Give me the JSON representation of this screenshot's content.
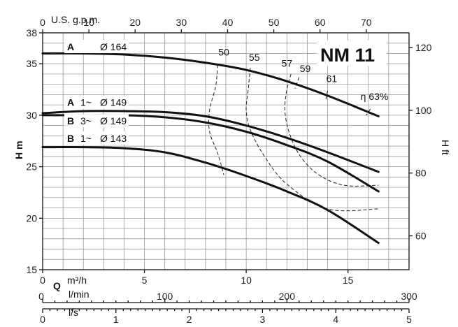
{
  "chart_data": {
    "type": "line",
    "title": "NM 11",
    "xlabel": "Q m³/h",
    "ylabel": "H m",
    "y2label": "H ft",
    "xlim": [
      0,
      18
    ],
    "ylim": [
      15,
      38
    ],
    "x_ticks": [
      0,
      5,
      10,
      15
    ],
    "y_ticks": [
      15,
      20,
      25,
      30,
      35,
      38
    ],
    "top_axis": {
      "label": "U.S. g.p.m.",
      "ticks": [
        0,
        10,
        20,
        30,
        40,
        50,
        60,
        70
      ]
    },
    "right_axis": {
      "label": "H ft",
      "ticks": [
        60,
        80,
        100,
        120
      ]
    },
    "lmin_axis": {
      "label": "l/min",
      "ticks": [
        0,
        100,
        200,
        300
      ]
    },
    "ls_axis": {
      "label": "l/s",
      "ticks": [
        0,
        1,
        2,
        3,
        4,
        5
      ]
    },
    "series": [
      {
        "name": "A  Ø 164",
        "prefix": "A",
        "phase": "",
        "diameter": "Ø 164",
        "x": [
          0,
          2,
          4,
          6,
          8,
          10,
          12,
          14,
          16.5
        ],
        "y": [
          36.0,
          36.0,
          35.9,
          35.6,
          35.1,
          34.4,
          33.3,
          31.9,
          29.9
        ]
      },
      {
        "name": "A 1~ Ø 149",
        "prefix": "A",
        "phase": "1~",
        "diameter": "Ø 149",
        "x": [
          0,
          2,
          4,
          6,
          8,
          10,
          12,
          14,
          16.5
        ],
        "y": [
          30.2,
          30.4,
          30.4,
          30.3,
          29.9,
          29.0,
          27.8,
          26.4,
          24.5
        ]
      },
      {
        "name": "B 3~ Ø 149",
        "prefix": "B",
        "phase": "3~",
        "diameter": "Ø 149",
        "x": [
          0,
          2,
          4,
          6,
          8,
          10,
          12,
          14,
          16.5
        ],
        "y": [
          30.0,
          30.0,
          30.0,
          29.8,
          29.3,
          28.4,
          27.1,
          25.5,
          22.6
        ]
      },
      {
        "name": "B 1~ Ø 143",
        "prefix": "B",
        "phase": "1~",
        "diameter": "Ø 143",
        "x": [
          0,
          2,
          4,
          6,
          8,
          10,
          12,
          14,
          16.5
        ],
        "y": [
          26.9,
          26.9,
          26.8,
          26.4,
          25.4,
          24.1,
          22.6,
          20.8,
          17.6
        ]
      }
    ],
    "efficiency_lines": [
      {
        "label": "50",
        "x": [
          8.6,
          8.5,
          8.2,
          8.2,
          8.6,
          8.9
        ],
        "y": [
          34.9,
          32.8,
          30.5,
          28.4,
          26.3,
          24.2
        ]
      },
      {
        "label": "55",
        "x": [
          10.2,
          10.1,
          10.0,
          10.2,
          10.9,
          12.0,
          14.0,
          16.5
        ],
        "y": [
          34.6,
          32.5,
          30.5,
          28.6,
          26.0,
          23.3,
          20.9,
          20.9
        ]
      },
      {
        "label": "57",
        "x": [
          12.2,
          12.0,
          11.9,
          12.1,
          12.6,
          13.5,
          14.8,
          16.5
        ],
        "y": [
          34.0,
          32.5,
          30.5,
          28.4,
          26.2,
          24.3,
          23.2,
          23.2
        ]
      },
      {
        "label": "59",
        "x": [
          12.6,
          12.4
        ],
        "y": [
          33.7,
          32.6
        ]
      },
      {
        "label": "61",
        "x": [
          14.0,
          13.9
        ],
        "y": [
          32.4,
          31.4
        ]
      },
      {
        "label": "η 63%",
        "x": [
          16.1,
          15.9
        ],
        "y": [
          30.6,
          30.0
        ]
      }
    ],
    "eff_label_pos": [
      {
        "label": "50",
        "x": 8.9,
        "y": 35.8
      },
      {
        "label": "55",
        "x": 10.4,
        "y": 35.3
      },
      {
        "label": "57",
        "x": 12.0,
        "y": 34.7
      },
      {
        "label": "59",
        "x": 12.9,
        "y": 34.2
      },
      {
        "label": "61",
        "x": 14.2,
        "y": 33.2
      },
      {
        "label": "η 63%",
        "x": 16.3,
        "y": 31.5
      }
    ],
    "curve_labels": [
      {
        "prefix": "A",
        "phase": "",
        "diameter": "Ø 164",
        "y": 36.3
      },
      {
        "prefix": "A",
        "phase": "1~",
        "diameter": "Ø 149",
        "y": 30.9
      },
      {
        "prefix": "B",
        "phase": "3~",
        "diameter": "Ø 149",
        "y": 29.1
      },
      {
        "prefix": "B",
        "phase": "1~",
        "diameter": "Ø 143",
        "y": 27.4
      }
    ]
  }
}
